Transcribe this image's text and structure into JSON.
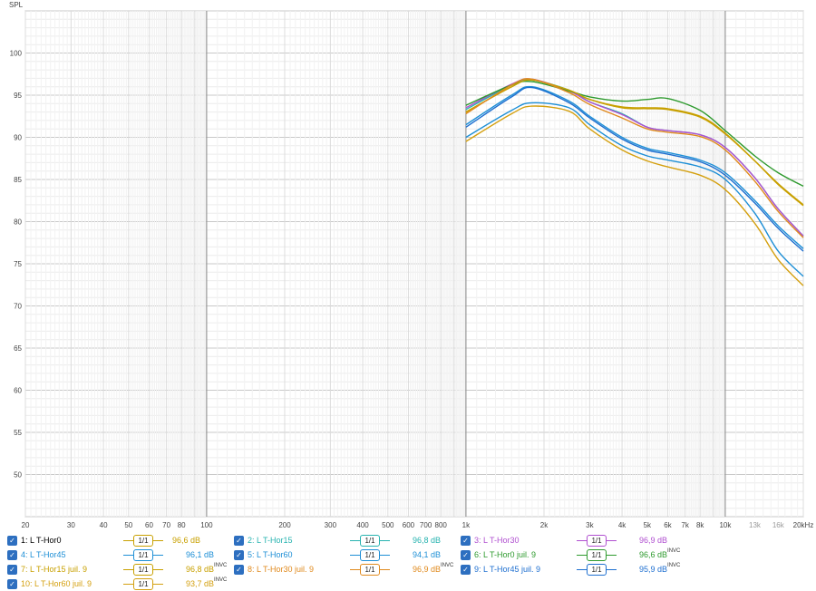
{
  "chart_data": {
    "type": "line",
    "ylabel": "SPL",
    "xscale": "log",
    "xlim": [
      20,
      20000
    ],
    "ylim": [
      45,
      105
    ],
    "y_ticks": [
      50,
      55,
      60,
      65,
      70,
      75,
      80,
      85,
      90,
      95,
      100
    ],
    "x_ticks": [
      {
        "v": 20,
        "t": "20"
      },
      {
        "v": 30,
        "t": "30"
      },
      {
        "v": 40,
        "t": "40"
      },
      {
        "v": 50,
        "t": "50"
      },
      {
        "v": 60,
        "t": "60"
      },
      {
        "v": 70,
        "t": "70"
      },
      {
        "v": 80,
        "t": "80"
      },
      {
        "v": 100,
        "t": "100"
      },
      {
        "v": 200,
        "t": "200"
      },
      {
        "v": 300,
        "t": "300"
      },
      {
        "v": 400,
        "t": "400"
      },
      {
        "v": 500,
        "t": "500"
      },
      {
        "v": 600,
        "t": "600"
      },
      {
        "v": 700,
        "t": "700"
      },
      {
        "v": 800,
        "t": "800"
      },
      {
        "v": 1000,
        "t": "1k"
      },
      {
        "v": 2000,
        "t": "2k"
      },
      {
        "v": 3000,
        "t": "3k"
      },
      {
        "v": 4000,
        "t": "4k"
      },
      {
        "v": 5000,
        "t": "5k"
      },
      {
        "v": 6000,
        "t": "6k"
      },
      {
        "v": 7000,
        "t": "7k"
      },
      {
        "v": 8000,
        "t": "8k"
      },
      {
        "v": 10000,
        "t": "10k"
      },
      {
        "v": 13000,
        "t": "13k"
      },
      {
        "v": 16000,
        "t": "16k"
      },
      {
        "v": 20000,
        "t": "20kHz"
      }
    ],
    "x": [
      1000,
      1500,
      1800,
      2500,
      3000,
      4000,
      5000,
      6000,
      8000,
      10000,
      13000,
      16000,
      20000
    ],
    "series": [
      {
        "name": "1: L T-Hor0",
        "color": "#c8a000",
        "level": "96,6 dB",
        "inv": false,
        "values": [
          93.0,
          96.0,
          96.8,
          95.5,
          94.5,
          93.6,
          93.5,
          93.4,
          92.5,
          90.5,
          87.2,
          84.5,
          82.0
        ]
      },
      {
        "name": "2: L T-Hor15",
        "color": "#27b3b0",
        "level": "96,8 dB",
        "inv": false,
        "values": [
          93.3,
          96.2,
          96.8,
          95.6,
          94.2,
          92.8,
          91.2,
          90.8,
          90.3,
          88.8,
          85.2,
          81.5,
          78.3
        ]
      },
      {
        "name": "3: L T-Hor30",
        "color": "#b04fd0",
        "level": "96,9 dB",
        "inv": false,
        "values": [
          93.5,
          96.3,
          96.9,
          95.5,
          94.2,
          92.7,
          91.2,
          90.8,
          90.3,
          88.8,
          85.2,
          81.5,
          78.3
        ]
      },
      {
        "name": "4: L T-Hor45",
        "color": "#1e8fd6",
        "level": "96,1 dB",
        "inv": false,
        "values": [
          91.5,
          95.0,
          96.0,
          94.3,
          92.5,
          90.0,
          88.7,
          88.2,
          87.3,
          85.8,
          82.5,
          79.5,
          76.8
        ]
      },
      {
        "name": "5: L T-Hor60",
        "color": "#1e8fd6",
        "level": "94,1 dB",
        "inv": false,
        "values": [
          90.0,
          93.2,
          94.1,
          93.5,
          91.5,
          89.0,
          87.8,
          87.3,
          86.5,
          85.0,
          81.0,
          76.5,
          73.5
        ]
      },
      {
        "name": "6: L T-Hor0 juil. 9",
        "color": "#2e9a2e",
        "level": "96,6 dB",
        "inv": true,
        "values": [
          93.8,
          96.2,
          96.6,
          95.5,
          94.8,
          94.3,
          94.5,
          94.6,
          93.2,
          90.8,
          87.8,
          85.8,
          84.2
        ]
      },
      {
        "name": "7: L T-Hor15 juil. 9",
        "color": "#c8a000",
        "level": "96,8 dB",
        "inv": true,
        "values": [
          93.0,
          96.0,
          96.8,
          95.6,
          94.5,
          93.5,
          93.4,
          93.3,
          92.4,
          90.4,
          87.2,
          84.4,
          81.9
        ]
      },
      {
        "name": "8: L T-Hor30 juil. 9",
        "color": "#e08a1e",
        "level": "96,9 dB",
        "inv": true,
        "values": [
          92.8,
          96.2,
          96.9,
          95.3,
          93.9,
          92.3,
          91.0,
          90.6,
          90.1,
          88.5,
          84.8,
          81.2,
          78.1
        ]
      },
      {
        "name": "9: L T-Hor45 juil. 9",
        "color": "#1e6fd0",
        "level": "95,9 dB",
        "inv": true,
        "values": [
          91.2,
          94.8,
          95.9,
          94.1,
          92.3,
          89.8,
          88.5,
          88.0,
          87.1,
          85.5,
          82.2,
          79.2,
          76.5
        ]
      },
      {
        "name": "10: L T-Hor60 juil. 9",
        "color": "#d4a010",
        "level": "93,7 dB",
        "inv": true,
        "values": [
          89.5,
          92.8,
          93.7,
          93.1,
          91.0,
          88.5,
          87.2,
          86.5,
          85.5,
          83.8,
          79.8,
          75.5,
          72.4
        ]
      }
    ]
  },
  "legend": {
    "smoothing_label": "1/1",
    "inv_label": "INVC"
  }
}
